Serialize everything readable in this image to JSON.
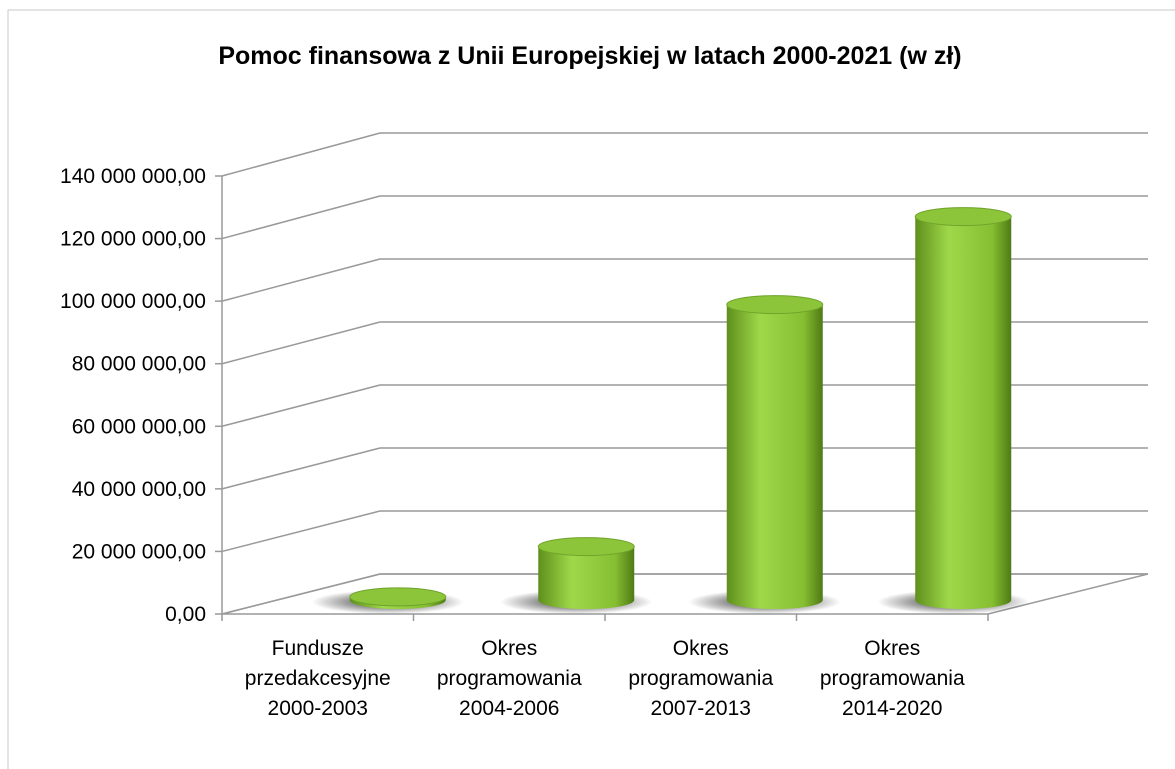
{
  "chart_data": {
    "type": "bar3d-cylinder",
    "title": "Pomoc finansowa z Unii Europejskiej w latach 2000-2021 (w zł)",
    "categories": [
      "Fundusze\nprzedakcesyjne\n2000-2003",
      "Okres\nprogramowania\n2004-2006",
      "Okres\nprogramowania\n2007-2013",
      "Okres\nprogramowania\n2014-2020"
    ],
    "values": [
      1000000,
      17000000,
      94000000,
      122000000
    ],
    "color": "#8cc43a",
    "ylim": [
      0,
      140000000
    ],
    "yticks": [
      {
        "value": 0,
        "label": "0,00"
      },
      {
        "value": 20000000,
        "label": "20 000 000,00"
      },
      {
        "value": 40000000,
        "label": "40 000 000,00"
      },
      {
        "value": 60000000,
        "label": "60 000 000,00"
      },
      {
        "value": 80000000,
        "label": "80 000 000,00"
      },
      {
        "value": 100000000,
        "label": "100 000 000,00"
      },
      {
        "value": 120000000,
        "label": "120 000 000,00"
      },
      {
        "value": 140000000,
        "label": "140 000 000,00"
      }
    ],
    "grid": true
  }
}
